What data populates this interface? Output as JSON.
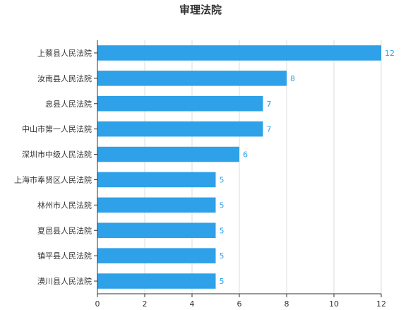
{
  "chart_data": {
    "type": "bar",
    "orientation": "horizontal",
    "title": "审理法院",
    "xlabel": "",
    "ylabel": "",
    "categories": [
      "上蔡县人民法院",
      "汝南县人民法院",
      "息县人民法院",
      "中山市第一人民法院",
      "深圳市中级人民法院",
      "上海市奉贤区人民法院",
      "林州市人民法院",
      "夏邑县人民法院",
      "镇平县人民法院",
      "潢川县人民法院"
    ],
    "values": [
      12,
      8,
      7,
      7,
      6,
      5,
      5,
      5,
      5,
      5
    ],
    "xlim": [
      0,
      12
    ],
    "xticks": [
      0,
      2,
      4,
      6,
      8,
      10,
      12
    ],
    "grid": true,
    "legend": "none",
    "bar_color": "#2ea1e8",
    "value_label_color": "#2ea1e8"
  }
}
